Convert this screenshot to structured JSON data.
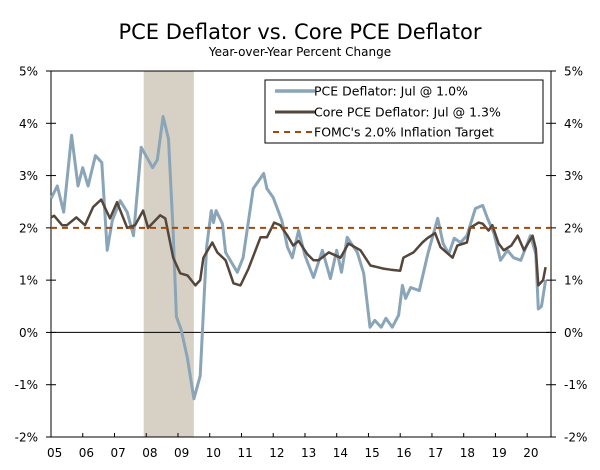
{
  "chart_data": {
    "type": "line",
    "title": "PCE Deflator vs. Core PCE Deflator",
    "subtitle": "Year-over-Year Percent Change",
    "xlabel": "",
    "ylabel": "",
    "xlim": [
      2005,
      2020.75
    ],
    "ylim": [
      -2,
      5
    ],
    "y_ticks": [
      5,
      4,
      3,
      2,
      1,
      0,
      -1,
      -2
    ],
    "y_tick_labels": [
      "5%",
      "4%",
      "3%",
      "2%",
      "1%",
      "0%",
      "-1%",
      "-2%"
    ],
    "x_ticks": [
      2005,
      2006,
      2007,
      2008,
      2009,
      2010,
      2011,
      2012,
      2013,
      2014,
      2015,
      2016,
      2017,
      2018,
      2019,
      2020
    ],
    "x_tick_labels": [
      "05",
      "06",
      "07",
      "08",
      "09",
      "10",
      "11",
      "12",
      "13",
      "14",
      "15",
      "16",
      "17",
      "18",
      "19",
      "20"
    ],
    "legend_placement": "top-right",
    "recession_shading": [
      [
        2007.92,
        2009.5
      ]
    ],
    "series": [
      {
        "name": "PCE Deflator: Jul @ 1.0%",
        "color": "#8aa5b8",
        "x": [
          2005.0,
          2005.2,
          2005.4,
          2005.65,
          2005.85,
          2006.0,
          2006.17,
          2006.4,
          2006.6,
          2006.77,
          2006.93,
          2007.18,
          2007.4,
          2007.6,
          2007.84,
          2008.2,
          2008.35,
          2008.53,
          2008.7,
          2008.85,
          2008.95,
          2009.1,
          2009.3,
          2009.5,
          2009.7,
          2009.9,
          2010.05,
          2010.12,
          2010.2,
          2010.4,
          2010.5,
          2010.87,
          2011.05,
          2011.37,
          2011.7,
          2011.8,
          2012.0,
          2012.27,
          2012.45,
          2012.6,
          2012.8,
          2013.0,
          2013.27,
          2013.55,
          2013.8,
          2014.0,
          2014.15,
          2014.33,
          2014.65,
          2014.85,
          2015.05,
          2015.2,
          2015.4,
          2015.55,
          2015.75,
          2015.95,
          2016.07,
          2016.17,
          2016.33,
          2016.6,
          2016.87,
          2017.18,
          2017.35,
          2017.53,
          2017.7,
          2017.9,
          2018.1,
          2018.37,
          2018.6,
          2018.75,
          2018.95,
          2019.16,
          2019.38,
          2019.57,
          2019.8,
          2020.1,
          2020.27,
          2020.35,
          2020.45,
          2020.58
        ],
        "y": [
          2.56,
          2.8,
          2.3,
          3.77,
          2.8,
          3.15,
          2.8,
          3.38,
          3.25,
          1.57,
          2.14,
          2.52,
          2.3,
          1.85,
          3.54,
          3.15,
          3.3,
          4.13,
          3.7,
          1.9,
          0.3,
          0.05,
          -0.5,
          -1.27,
          -0.83,
          1.63,
          2.33,
          2.1,
          2.33,
          2.08,
          1.53,
          1.15,
          1.43,
          2.75,
          3.04,
          2.75,
          2.58,
          2.14,
          1.63,
          1.43,
          1.95,
          1.47,
          1.05,
          1.57,
          1.03,
          1.57,
          1.15,
          1.82,
          1.53,
          1.13,
          0.1,
          0.23,
          0.1,
          0.27,
          0.1,
          0.33,
          0.9,
          0.65,
          0.86,
          0.8,
          1.5,
          2.18,
          1.7,
          1.5,
          1.8,
          1.72,
          1.85,
          2.37,
          2.43,
          2.18,
          1.9,
          1.38,
          1.57,
          1.43,
          1.38,
          1.85,
          1.5,
          0.45,
          0.5,
          1.0
        ]
      },
      {
        "name": "Core PCE Deflator: Jul @ 1.3%",
        "color": "#54463a",
        "x": [
          2005.0,
          2005.1,
          2005.35,
          2005.5,
          2005.8,
          2006.07,
          2006.33,
          2006.58,
          2006.86,
          2007.08,
          2007.4,
          2007.65,
          2007.9,
          2008.06,
          2008.44,
          2008.6,
          2008.85,
          2009.07,
          2009.3,
          2009.55,
          2009.7,
          2009.8,
          2010.08,
          2010.24,
          2010.5,
          2010.75,
          2010.97,
          2011.22,
          2011.6,
          2011.8,
          2012.03,
          2012.22,
          2012.45,
          2012.63,
          2012.8,
          2013.07,
          2013.27,
          2013.43,
          2013.75,
          2014.12,
          2014.37,
          2014.75,
          2015.06,
          2015.47,
          2015.7,
          2016.0,
          2016.1,
          2016.42,
          2016.7,
          2016.85,
          2017.1,
          2017.27,
          2017.65,
          2017.8,
          2018.1,
          2018.2,
          2018.47,
          2018.6,
          2018.78,
          2018.9,
          2019.1,
          2019.26,
          2019.5,
          2019.7,
          2019.9,
          2020.17,
          2020.27,
          2020.35,
          2020.5,
          2020.58
        ],
        "y": [
          2.2,
          2.23,
          2.05,
          2.05,
          2.2,
          2.05,
          2.4,
          2.54,
          2.18,
          2.49,
          2.0,
          2.05,
          2.33,
          2.0,
          2.24,
          2.18,
          1.43,
          1.13,
          1.09,
          0.9,
          1.0,
          1.43,
          1.72,
          1.53,
          1.38,
          0.94,
          0.9,
          1.22,
          1.82,
          1.82,
          2.1,
          2.05,
          1.85,
          1.66,
          1.75,
          1.5,
          1.38,
          1.38,
          1.53,
          1.43,
          1.7,
          1.57,
          1.28,
          1.22,
          1.2,
          1.18,
          1.43,
          1.53,
          1.72,
          1.8,
          1.9,
          1.63,
          1.43,
          1.66,
          1.72,
          2.0,
          2.1,
          2.08,
          1.95,
          2.05,
          1.7,
          1.57,
          1.66,
          1.85,
          1.57,
          1.85,
          1.6,
          0.9,
          1.0,
          1.25
        ]
      },
      {
        "name": "FOMC's 2.0% Inflation Target",
        "color": "#a24a0c",
        "x": [
          2005,
          2020.75
        ],
        "y": [
          2.0,
          2.0
        ]
      }
    ]
  }
}
